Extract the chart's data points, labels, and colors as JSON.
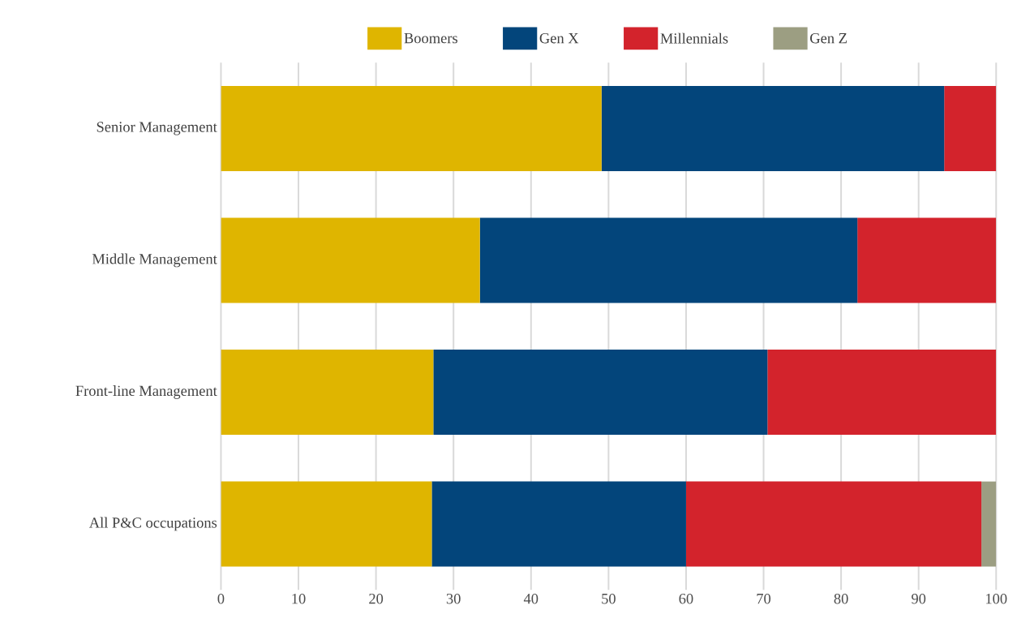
{
  "chart_data": {
    "type": "bar",
    "orientation": "horizontal",
    "stacked": true,
    "categories": [
      "Senior Management",
      "Middle Management",
      "Front-line Management",
      "All P&C occupations"
    ],
    "series": [
      {
        "name": "Boomers",
        "color": "#dfb500",
        "values": [
          49.1,
          33.4,
          27.4,
          27.2
        ]
      },
      {
        "name": "Gen X",
        "color": "#03457b",
        "values": [
          44.2,
          48.7,
          43.1,
          32.8
        ]
      },
      {
        "name": "Millennials",
        "color": "#d3232c",
        "values": [
          6.7,
          17.9,
          29.5,
          38.1
        ]
      },
      {
        "name": "Gen Z",
        "color": "#9c9e82",
        "values": [
          0,
          0,
          0,
          1.9
        ]
      }
    ],
    "xlim": [
      0,
      100
    ],
    "xticks": [
      0,
      10,
      20,
      30,
      40,
      50,
      60,
      70,
      80,
      90,
      100
    ],
    "grid": "x",
    "legend": "top"
  }
}
